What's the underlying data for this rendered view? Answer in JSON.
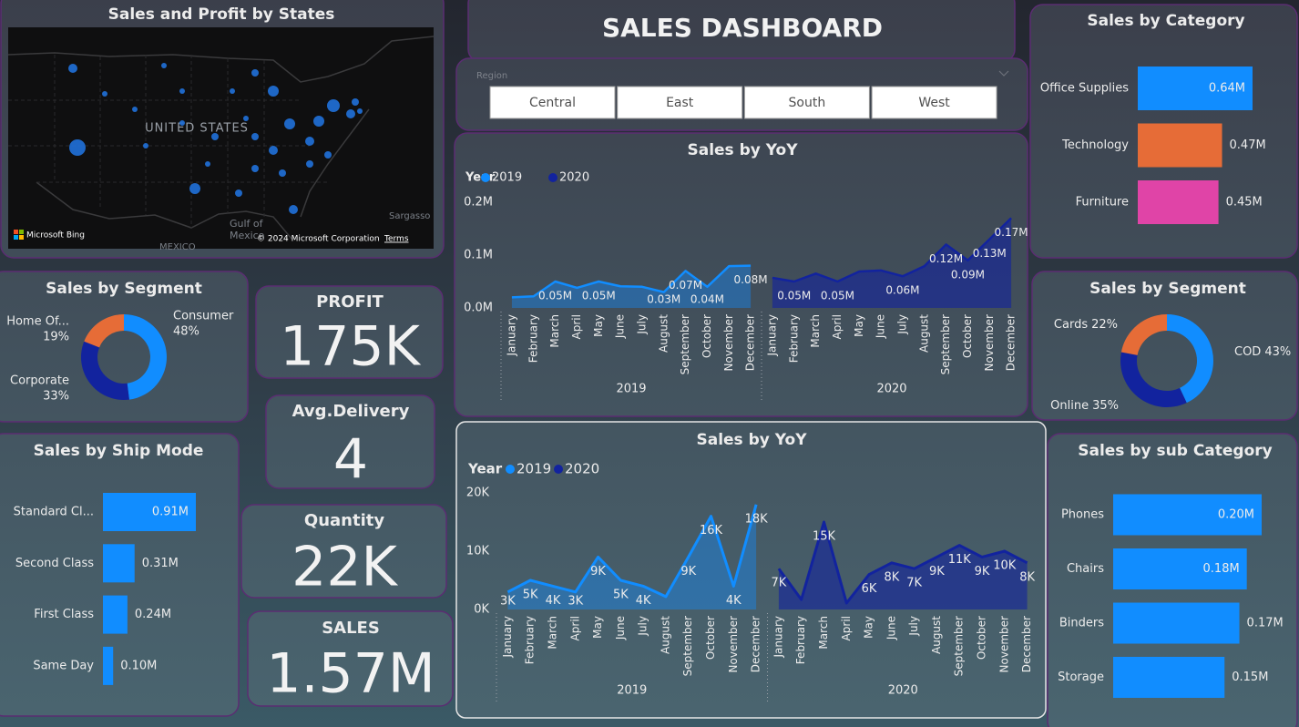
{
  "dashboard_title": "SALES DASHBOARD",
  "map": {
    "title": "Sales and Profit by States",
    "country_label": "UNITED STATES",
    "sea_label_1": "Gulf of",
    "sea_label_2": "Mexico",
    "south_label": "MEXICO",
    "ocean_label": "Sargasso",
    "provider": "Microsoft Bing",
    "copyright": "© 2024 Microsoft Corporation",
    "terms": "Terms"
  },
  "slicer": {
    "title": "Region",
    "options": [
      "Central",
      "East",
      "South",
      "West"
    ]
  },
  "kpis": [
    {
      "title": "PROFIT",
      "value": "175K"
    },
    {
      "title": "Avg.Delivery",
      "value": "4"
    },
    {
      "title": "Quantity",
      "value": "22K"
    },
    {
      "title": "SALES",
      "value": "1.57M"
    }
  ],
  "chart_data": [
    {
      "type": "donut",
      "title": "Sales by Segment",
      "categories": [
        "Consumer",
        "Corporate",
        "Home Of..."
      ],
      "values": [
        48,
        33,
        19
      ],
      "value_labels": [
        "48%",
        "33%",
        "19%"
      ],
      "colors": [
        "#118dff",
        "#12239e",
        "#e66c37"
      ]
    },
    {
      "type": "hbar",
      "title": "Sales by Ship Mode",
      "categories": [
        "Standard Cl...",
        "Second Class",
        "First Class",
        "Same Day"
      ],
      "values": [
        910000,
        310000,
        240000,
        100000
      ],
      "value_labels": [
        "0.91M",
        "0.31M",
        "0.24M",
        "0.10M"
      ],
      "color": "#118dff"
    },
    {
      "type": "area",
      "title": "Sales by YoY",
      "legend_title": "Year",
      "categories": [
        "January",
        "February",
        "March",
        "April",
        "May",
        "June",
        "July",
        "August",
        "September",
        "October",
        "November",
        "December"
      ],
      "series": [
        {
          "name": "2019",
          "color": "#118dff",
          "values": [
            20000,
            22000,
            50000,
            38000,
            50000,
            41000,
            40000,
            30000,
            70000,
            40000,
            79000,
            80000
          ],
          "value_labels": [
            null,
            null,
            "0.05M",
            null,
            "0.05M",
            null,
            null,
            "0.03M",
            "0.07M",
            "0.04M",
            null,
            "0.08M"
          ]
        },
        {
          "name": "2020",
          "color": "#12239e",
          "values": [
            57000,
            50000,
            65000,
            50000,
            69000,
            71000,
            60000,
            79000,
            120000,
            90000,
            130000,
            170000
          ],
          "value_labels": [
            null,
            "0.05M",
            null,
            "0.05M",
            null,
            null,
            "0.06M",
            null,
            "0.12M",
            "0.09M",
            "0.13M",
            "0.17M"
          ]
        }
      ],
      "ylim": [
        0,
        200000
      ],
      "yticks": [
        {
          "value": 0,
          "label": "0.0M"
        },
        {
          "value": 100000,
          "label": "0.1M"
        },
        {
          "value": 200000,
          "label": "0.2M"
        }
      ],
      "grid": false
    },
    {
      "type": "area",
      "title": "Sales by YoY",
      "legend_title": "Year",
      "categories": [
        "January",
        "February",
        "March",
        "April",
        "May",
        "June",
        "July",
        "August",
        "September",
        "October",
        "November",
        "December"
      ],
      "series": [
        {
          "name": "2019",
          "color": "#118dff",
          "values": [
            3000,
            5000,
            4000,
            3000,
            9000,
            5000,
            4000,
            2200,
            9000,
            16000,
            4000,
            18000
          ],
          "value_labels": [
            "3K",
            "5K",
            "4K",
            "3K",
            "9K",
            "5K",
            "4K",
            null,
            "9K",
            "16K",
            "4K",
            "18K"
          ]
        },
        {
          "name": "2020",
          "color": "#12239e",
          "values": [
            7000,
            1700,
            15000,
            1100,
            6000,
            8000,
            7000,
            9000,
            11000,
            9000,
            10000,
            8000
          ],
          "value_labels": [
            "7K",
            null,
            "15K",
            null,
            "6K",
            "8K",
            "7K",
            "9K",
            "11K",
            "9K",
            "10K",
            "8K"
          ]
        }
      ],
      "ylim": [
        0,
        20000
      ],
      "yticks": [
        {
          "value": 0,
          "label": "0K"
        },
        {
          "value": 10000,
          "label": "10K"
        },
        {
          "value": 20000,
          "label": "20K"
        }
      ],
      "grid": false
    },
    {
      "type": "hbar",
      "title": "Sales by Category",
      "categories": [
        "Office Supplies",
        "Technology",
        "Furniture"
      ],
      "values": [
        640000,
        470000,
        450000
      ],
      "value_labels": [
        "0.64M",
        "0.47M",
        "0.45M"
      ],
      "colors": [
        "#118dff",
        "#e66c37",
        "#e044a7"
      ]
    },
    {
      "type": "donut",
      "title": "Sales by Segment",
      "categories": [
        "COD",
        "Online",
        "Cards"
      ],
      "values": [
        43,
        35,
        22
      ],
      "value_labels": [
        "43%",
        "35%",
        "22%"
      ],
      "colors": [
        "#118dff",
        "#12239e",
        "#e66c37"
      ]
    },
    {
      "type": "hbar",
      "title": "Sales by sub Category",
      "categories": [
        "Phones",
        "Chairs",
        "Binders",
        "Storage"
      ],
      "values": [
        200000,
        180000,
        170000,
        150000
      ],
      "value_labels": [
        "0.20M",
        "0.18M",
        "0.17M",
        "0.15M"
      ],
      "color": "#118dff"
    }
  ]
}
